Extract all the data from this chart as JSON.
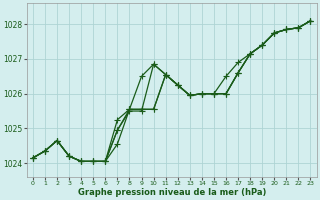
{
  "xlabel": "Graphe pression niveau de la mer (hPa)",
  "ylabel": "",
  "xlim": [
    -0.5,
    23.5
  ],
  "ylim": [
    1023.6,
    1028.6
  ],
  "yticks": [
    1024,
    1025,
    1026,
    1027,
    1028
  ],
  "xticks": [
    0,
    1,
    2,
    3,
    4,
    5,
    6,
    7,
    8,
    9,
    10,
    11,
    12,
    13,
    14,
    15,
    16,
    17,
    18,
    19,
    20,
    21,
    22,
    23
  ],
  "bg_color": "#d4eeee",
  "grid_color": "#aed4d4",
  "line_color": "#1a5c1a",
  "series": [
    {
      "x": [
        0,
        1,
        2,
        3,
        4,
        5,
        6,
        7,
        8,
        9,
        10,
        11,
        12,
        13,
        14,
        15,
        16,
        17,
        18,
        19,
        20,
        21,
        22,
        23
      ],
      "y": [
        1024.15,
        1024.35,
        1024.65,
        1024.2,
        1024.05,
        1024.05,
        1024.05,
        1024.95,
        1025.5,
        1025.5,
        1026.85,
        1026.55,
        1026.25,
        1025.95,
        1026.0,
        1026.0,
        1026.0,
        1026.6,
        1027.15,
        1027.4,
        1027.75,
        1027.85,
        1027.9,
        1028.1
      ]
    },
    {
      "x": [
        0,
        1,
        2,
        3,
        4,
        5,
        6,
        7,
        8,
        9,
        10,
        11,
        12,
        13,
        14,
        15,
        16,
        17,
        18,
        19,
        20,
        21,
        22,
        23
      ],
      "y": [
        1024.15,
        1024.35,
        1024.65,
        1024.2,
        1024.05,
        1024.05,
        1024.05,
        1025.25,
        1025.55,
        1025.55,
        1025.55,
        1026.55,
        1026.25,
        1025.95,
        1026.0,
        1026.0,
        1026.0,
        1026.6,
        1027.15,
        1027.4,
        1027.75,
        1027.85,
        1027.9,
        1028.1
      ]
    },
    {
      "x": [
        0,
        1,
        2,
        3,
        4,
        5,
        6,
        7,
        8,
        9,
        10,
        11,
        12,
        13,
        14,
        15,
        16,
        17,
        18,
        19,
        20,
        21,
        22,
        23
      ],
      "y": [
        1024.15,
        1024.35,
        1024.65,
        1024.2,
        1024.05,
        1024.05,
        1024.05,
        1024.95,
        1025.55,
        1026.5,
        1026.85,
        1026.55,
        1026.25,
        1025.95,
        1026.0,
        1026.0,
        1026.0,
        1026.6,
        1027.15,
        1027.4,
        1027.75,
        1027.85,
        1027.9,
        1028.1
      ]
    },
    {
      "x": [
        0,
        1,
        2,
        3,
        4,
        5,
        6,
        7,
        8,
        9,
        10,
        11,
        12,
        13,
        14,
        15,
        16,
        17,
        18,
        19,
        20,
        21,
        22,
        23
      ],
      "y": [
        1024.15,
        1024.35,
        1024.65,
        1024.2,
        1024.05,
        1024.05,
        1024.05,
        1024.55,
        1025.55,
        1025.55,
        1025.55,
        1026.55,
        1026.25,
        1025.95,
        1026.0,
        1026.0,
        1026.5,
        1026.9,
        1027.15,
        1027.4,
        1027.75,
        1027.85,
        1027.9,
        1028.1
      ]
    }
  ],
  "marker": "+",
  "markersize": 4,
  "linewidth": 0.9
}
